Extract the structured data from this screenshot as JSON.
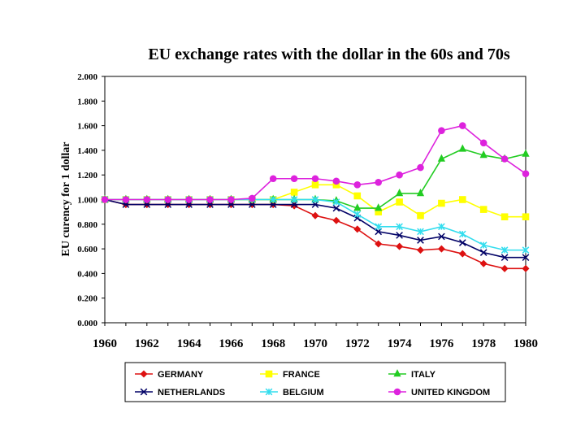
{
  "chart_data": {
    "type": "line",
    "title": "EU exchange rates with the dollar in the 60s and 70s",
    "xlabel": "",
    "ylabel": "EU curency for 1 dollar",
    "x": [
      1960,
      1961,
      1962,
      1963,
      1964,
      1965,
      1966,
      1967,
      1968,
      1969,
      1970,
      1971,
      1972,
      1973,
      1974,
      1975,
      1976,
      1977,
      1978,
      1979,
      1980
    ],
    "xlim": [
      1960,
      1980
    ],
    "ylim": [
      0,
      2
    ],
    "x_ticks": [
      "1960",
      "1962",
      "1964",
      "1966",
      "1968",
      "1970",
      "1972",
      "1974",
      "1976",
      "1978",
      "1980"
    ],
    "y_ticks": [
      "0.000",
      "0.200",
      "0.400",
      "0.600",
      "0.800",
      "1.000",
      "1.200",
      "1.400",
      "1.600",
      "1.800",
      "2.000"
    ],
    "legend_position": "bottom",
    "series": [
      {
        "name": "GERMANY",
        "color": "#dd1111",
        "marker": "diamond",
        "values": [
          1.0,
          0.96,
          0.96,
          0.96,
          0.96,
          0.96,
          0.96,
          0.96,
          0.96,
          0.95,
          0.87,
          0.83,
          0.76,
          0.64,
          0.62,
          0.59,
          0.6,
          0.56,
          0.48,
          0.44,
          0.44
        ]
      },
      {
        "name": "FRANCE",
        "color": "#ffff00",
        "marker": "square",
        "values": [
          1.0,
          1.0,
          1.0,
          1.0,
          1.0,
          1.0,
          1.0,
          1.0,
          1.0,
          1.06,
          1.12,
          1.12,
          1.03,
          0.9,
          0.98,
          0.87,
          0.97,
          1.0,
          0.92,
          0.86,
          0.86
        ]
      },
      {
        "name": "ITALY",
        "color": "#22cc22",
        "marker": "triangle",
        "values": [
          1.0,
          1.0,
          1.0,
          1.0,
          1.0,
          1.0,
          1.0,
          1.0,
          1.0,
          1.0,
          1.0,
          0.99,
          0.93,
          0.93,
          1.05,
          1.05,
          1.33,
          1.41,
          1.36,
          1.33,
          1.37
        ]
      },
      {
        "name": "NETHERLANDS",
        "color": "#000066",
        "marker": "x",
        "values": [
          1.0,
          0.96,
          0.96,
          0.96,
          0.96,
          0.96,
          0.96,
          0.96,
          0.96,
          0.96,
          0.96,
          0.93,
          0.85,
          0.74,
          0.71,
          0.67,
          0.7,
          0.65,
          0.57,
          0.53,
          0.53
        ]
      },
      {
        "name": "BELGIUM",
        "color": "#33ddee",
        "marker": "star",
        "values": [
          1.0,
          1.0,
          1.0,
          1.0,
          1.0,
          1.0,
          1.0,
          1.0,
          1.0,
          1.0,
          1.0,
          0.98,
          0.88,
          0.78,
          0.78,
          0.74,
          0.78,
          0.72,
          0.63,
          0.59,
          0.59
        ]
      },
      {
        "name": "UNITED KINGDOM",
        "color": "#dd22dd",
        "marker": "circle",
        "values": [
          1.0,
          1.0,
          1.0,
          1.0,
          1.0,
          1.0,
          1.0,
          1.01,
          1.17,
          1.17,
          1.17,
          1.15,
          1.12,
          1.14,
          1.2,
          1.26,
          1.56,
          1.6,
          1.46,
          1.33,
          1.21
        ]
      }
    ]
  }
}
